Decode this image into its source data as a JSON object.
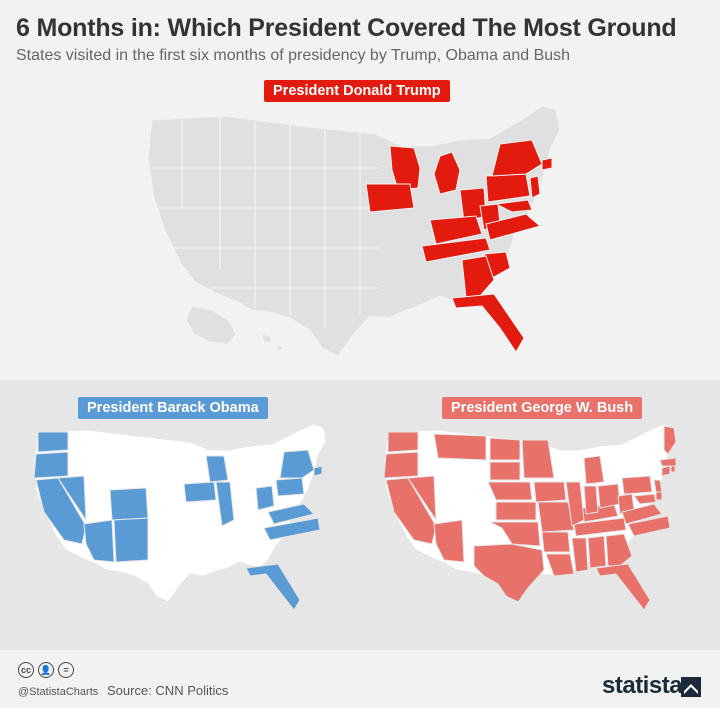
{
  "title": "6 Months in: Which President Covered The Most Ground",
  "subtitle": "States visited in the first six months of presidency by Trump, Obama and Bush",
  "maps": [
    {
      "label": "President Donald Trump",
      "color": "#e31a0e",
      "states_visited": [
        "Wisconsin",
        "Michigan",
        "Iowa",
        "Ohio",
        "Pennsylvania",
        "New York",
        "New Jersey",
        "Connecticut",
        "Rhode Island",
        "Delaware",
        "Maryland",
        "Virginia",
        "West Virginia",
        "Kentucky",
        "Tennessee",
        "South Carolina",
        "Georgia",
        "Florida"
      ]
    },
    {
      "label": "President Barack Obama",
      "color": "#5b9bd5",
      "states_visited": [
        "Washington",
        "Oregon",
        "Nevada",
        "California",
        "Arizona",
        "Colorado",
        "New Mexico",
        "Iowa",
        "Wisconsin",
        "Illinois",
        "Ohio",
        "New York",
        "Pennsylvania",
        "Virginia",
        "North Carolina",
        "Connecticut",
        "Florida"
      ]
    },
    {
      "label": "President George W. Bush",
      "color": "#e8716a",
      "states_visited": [
        "Washington",
        "Oregon",
        "Nevada",
        "California",
        "Arizona",
        "Montana",
        "North Dakota",
        "South Dakota",
        "Nebraska",
        "Minnesota",
        "Iowa",
        "Missouri",
        "Kansas",
        "Oklahoma",
        "Texas",
        "Arkansas",
        "Louisiana",
        "Mississippi",
        "Alabama",
        "Georgia",
        "Florida",
        "Tennessee",
        "Kentucky",
        "Illinois",
        "Indiana",
        "Ohio",
        "Michigan",
        "Pennsylvania",
        "West Virginia",
        "Virginia",
        "North Carolina",
        "Maryland",
        "Delaware",
        "New Jersey",
        "Connecticut",
        "Rhode Island",
        "Massachusetts",
        "Maine"
      ]
    }
  ],
  "colors": {
    "unvisited_top": "#e0e0e0",
    "unvisited_bottom": "#ffffff",
    "border": "#ffffff"
  },
  "footer": {
    "handle": "@StatistaCharts",
    "source": "Source: CNN Politics",
    "brand": "statista",
    "license_icons": [
      "cc",
      "by",
      "nd"
    ]
  }
}
